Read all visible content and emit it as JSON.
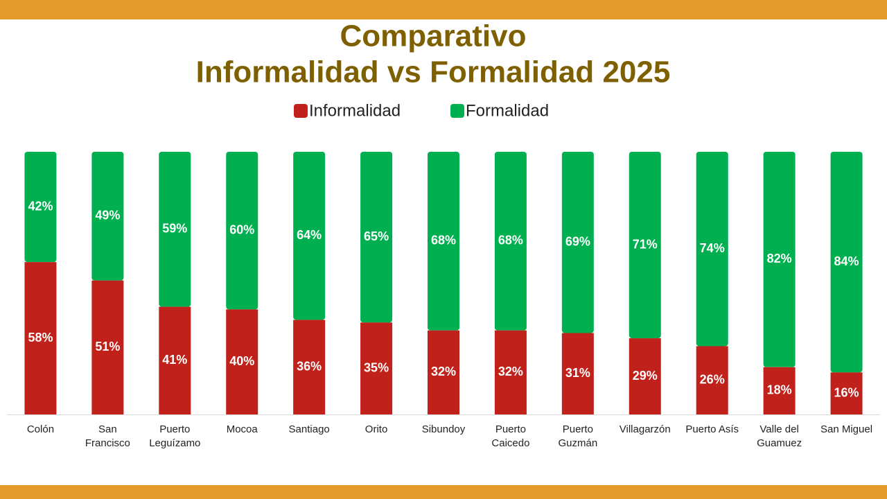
{
  "chart_data": {
    "type": "stacked_bar",
    "title": [
      "Comparativo",
      "Informalidad vs Formalidad 2025"
    ],
    "categories": [
      "Colón",
      "San Francisco",
      "Puerto Leguízamo",
      "Mocoa",
      "Santiago",
      "Orito",
      "Sibundoy",
      "Puerto Caicedo",
      "Puerto Guzmán",
      "Villagarzón",
      "Puerto Asís",
      "Valle del Guamuez",
      "San Miguel"
    ],
    "series": [
      {
        "name": "Informalidad",
        "color": "#c0211a",
        "values": [
          58,
          51,
          41,
          40,
          36,
          35,
          32,
          32,
          31,
          29,
          26,
          18,
          16
        ],
        "value_labels": [
          "58%",
          "51%",
          "41%",
          "40%",
          "36%",
          "35%",
          "32%",
          "32%",
          "31%",
          "29%",
          "26%",
          "18%",
          "16%"
        ]
      },
      {
        "name": "Formalidad",
        "color": "#00b050",
        "values": [
          42,
          49,
          59,
          60,
          64,
          65,
          68,
          68,
          69,
          71,
          74,
          82,
          84
        ],
        "value_labels": [
          "42%",
          "49%",
          "59%",
          "60%",
          "64%",
          "65%",
          "68%",
          "68%",
          "69%",
          "71%",
          "74%",
          "82%",
          "84%"
        ]
      }
    ],
    "legend": "top"
  }
}
